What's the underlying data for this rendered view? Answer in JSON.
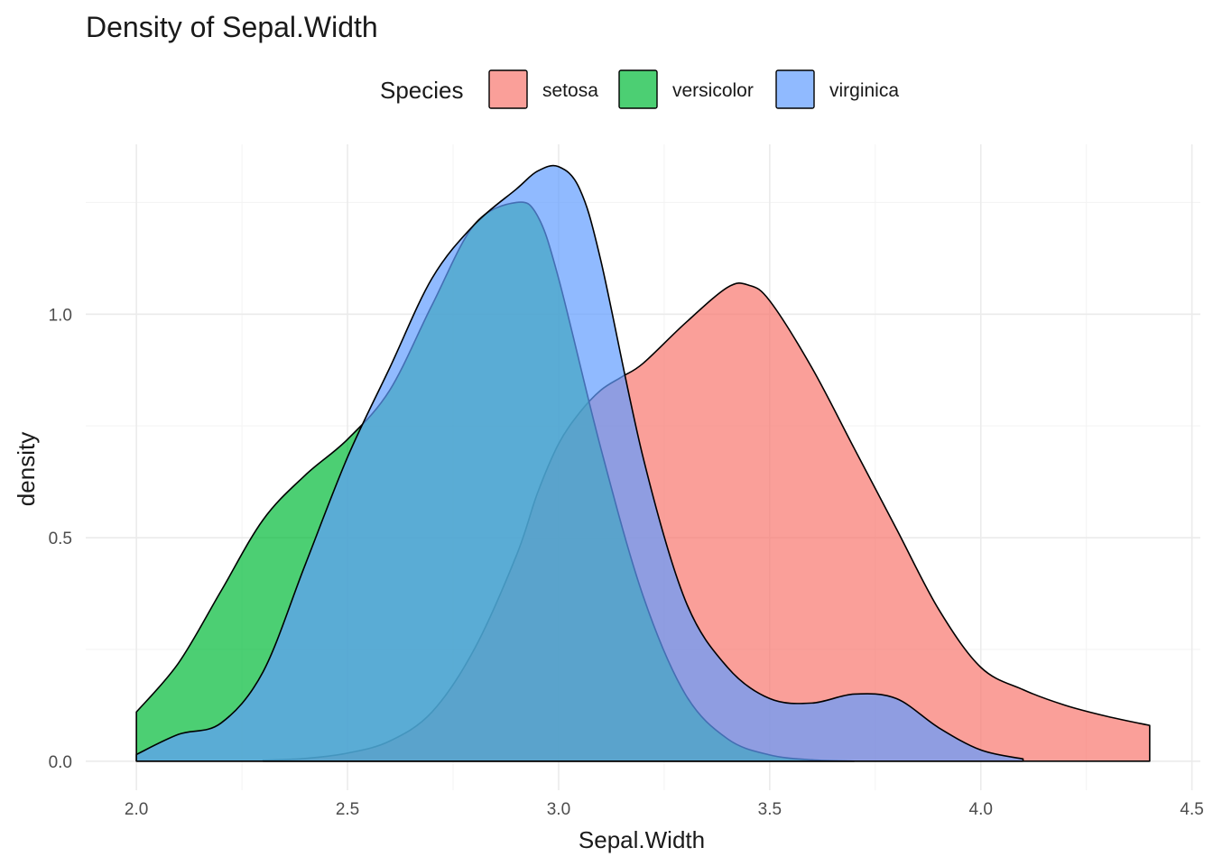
{
  "chart_data": {
    "type": "area",
    "title": "Density of Sepal.Width",
    "xlabel": "Sepal.Width",
    "ylabel": "density",
    "xlim": [
      1.88,
      4.52
    ],
    "ylim": [
      -0.065,
      1.38
    ],
    "x_ticks": [
      2.0,
      2.5,
      3.0,
      3.5,
      4.0,
      4.5
    ],
    "x_tick_labels": [
      "2.0",
      "2.5",
      "3.0",
      "3.5",
      "4.0",
      "4.5"
    ],
    "y_ticks": [
      0.0,
      0.5,
      1.0
    ],
    "y_tick_labels": [
      "0.0",
      "0.5",
      "1.0"
    ],
    "grid": true,
    "legend": {
      "title": "Species",
      "position": "top"
    },
    "fill_opacity": 0.7,
    "series": [
      {
        "name": "setosa",
        "color": "#F8766D",
        "x": [
          2.3,
          2.4,
          2.5,
          2.6,
          2.7,
          2.8,
          2.9,
          2.95,
          3.0,
          3.05,
          3.1,
          3.15,
          3.2,
          3.3,
          3.4,
          3.45,
          3.5,
          3.6,
          3.7,
          3.8,
          3.9,
          4.0,
          4.1,
          4.2,
          4.3,
          4.4
        ],
        "y": [
          0.002,
          0.006,
          0.018,
          0.045,
          0.11,
          0.25,
          0.46,
          0.6,
          0.71,
          0.78,
          0.83,
          0.86,
          0.89,
          0.98,
          1.06,
          1.065,
          1.03,
          0.88,
          0.7,
          0.52,
          0.34,
          0.21,
          0.16,
          0.125,
          0.1,
          0.08
        ]
      },
      {
        "name": "versicolor",
        "color": "#00BA38",
        "x": [
          2.0,
          2.1,
          2.2,
          2.3,
          2.4,
          2.5,
          2.6,
          2.7,
          2.8,
          2.9,
          2.95,
          3.0,
          3.1,
          3.2,
          3.3,
          3.4,
          3.5,
          3.6,
          3.7
        ],
        "y": [
          0.11,
          0.22,
          0.38,
          0.54,
          0.64,
          0.72,
          0.83,
          1.02,
          1.2,
          1.25,
          1.22,
          1.08,
          0.7,
          0.37,
          0.15,
          0.05,
          0.014,
          0.003,
          0.0
        ]
      },
      {
        "name": "virginica",
        "color": "#619CFF",
        "x": [
          2.0,
          2.1,
          2.2,
          2.3,
          2.4,
          2.5,
          2.6,
          2.7,
          2.8,
          2.9,
          2.95,
          3.0,
          3.05,
          3.1,
          3.2,
          3.3,
          3.4,
          3.5,
          3.6,
          3.7,
          3.8,
          3.9,
          4.0,
          4.1
        ],
        "y": [
          0.015,
          0.06,
          0.085,
          0.2,
          0.44,
          0.68,
          0.88,
          1.08,
          1.2,
          1.28,
          1.32,
          1.33,
          1.28,
          1.12,
          0.68,
          0.36,
          0.21,
          0.14,
          0.13,
          0.15,
          0.14,
          0.075,
          0.025,
          0.005
        ]
      }
    ]
  }
}
